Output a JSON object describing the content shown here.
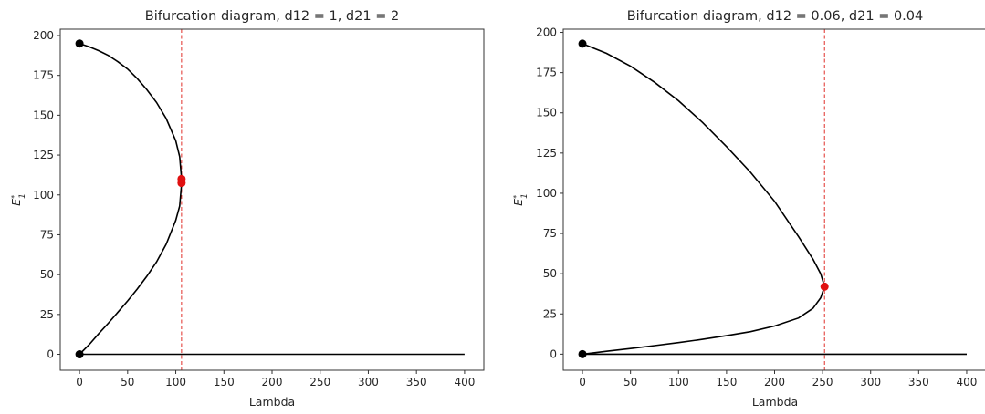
{
  "chart_data": [
    {
      "type": "line",
      "title": "Bifurcation diagram, d12 = 1, d21 = 2",
      "xlabel": "Lambda",
      "ylabel": "E_1^*",
      "xlim": [
        -20,
        420
      ],
      "ylim": [
        -10,
        204
      ],
      "xticks": [
        0,
        50,
        100,
        150,
        200,
        250,
        300,
        350,
        400
      ],
      "yticks": [
        0,
        25,
        50,
        75,
        100,
        125,
        150,
        175,
        200
      ],
      "grid": false,
      "legend": "none",
      "bifurcation_lambda": 106,
      "series": [
        {
          "color": "#000000",
          "points": [
            [
              0,
              0
            ],
            [
              10,
              6
            ],
            [
              20,
              13
            ],
            [
              30,
              19.5
            ],
            [
              40,
              26.5
            ],
            [
              50,
              33.5
            ],
            [
              60,
              41
            ],
            [
              70,
              49
            ],
            [
              80,
              58
            ],
            [
              90,
              69
            ],
            [
              100,
              84
            ],
            [
              104,
              93
            ],
            [
              106,
              107
            ],
            [
              106,
              110
            ],
            [
              104,
              124
            ],
            [
              100,
              134
            ],
            [
              90,
              148
            ],
            [
              80,
              158
            ],
            [
              70,
              166
            ],
            [
              60,
              173
            ],
            [
              50,
              179
            ],
            [
              40,
              183.5
            ],
            [
              30,
              187.5
            ],
            [
              20,
              190.5
            ],
            [
              10,
              193
            ],
            [
              0,
              195
            ]
          ]
        },
        {
          "color": "#000000",
          "points": [
            [
              0,
              0
            ],
            [
              400,
              0
            ]
          ]
        }
      ],
      "markers": [
        {
          "x": 0,
          "y": 195,
          "color": "#000000"
        },
        {
          "x": 0,
          "y": 0,
          "color": "#000000"
        },
        {
          "x": 106,
          "y": 110,
          "color": "#e01010"
        },
        {
          "x": 106,
          "y": 107.5,
          "color": "#e01010"
        }
      ]
    },
    {
      "type": "line",
      "title": "Bifurcation diagram, d12 = 0.06, d21 = 0.04",
      "xlabel": "Lambda",
      "ylabel": "E_1^*",
      "xlim": [
        -20,
        420
      ],
      "ylim": [
        -10,
        202
      ],
      "xticks": [
        0,
        50,
        100,
        150,
        200,
        250,
        300,
        350,
        400
      ],
      "yticks": [
        0,
        25,
        50,
        75,
        100,
        125,
        150,
        175,
        200
      ],
      "grid": false,
      "legend": "none",
      "bifurcation_lambda": 252,
      "series": [
        {
          "color": "#000000",
          "points": [
            [
              0,
              0
            ],
            [
              25,
              1.8
            ],
            [
              50,
              3.5
            ],
            [
              75,
              5.3
            ],
            [
              100,
              7.2
            ],
            [
              125,
              9.2
            ],
            [
              150,
              11.5
            ],
            [
              175,
              14
            ],
            [
              200,
              17.5
            ],
            [
              225,
              22.5
            ],
            [
              240,
              28.5
            ],
            [
              248,
              35
            ],
            [
              252,
              42
            ],
            [
              248,
              50
            ],
            [
              240,
              59
            ],
            [
              225,
              73
            ],
            [
              200,
              95
            ],
            [
              175,
              113
            ],
            [
              150,
              129
            ],
            [
              125,
              144
            ],
            [
              100,
              157.5
            ],
            [
              75,
              169
            ],
            [
              50,
              179
            ],
            [
              25,
              187
            ],
            [
              0,
              193
            ]
          ]
        },
        {
          "color": "#000000",
          "points": [
            [
              0,
              0
            ],
            [
              400,
              0
            ]
          ]
        }
      ],
      "markers": [
        {
          "x": 0,
          "y": 193,
          "color": "#000000"
        },
        {
          "x": 0,
          "y": 0,
          "color": "#000000"
        },
        {
          "x": 252,
          "y": 42,
          "color": "#e01010"
        }
      ]
    }
  ]
}
